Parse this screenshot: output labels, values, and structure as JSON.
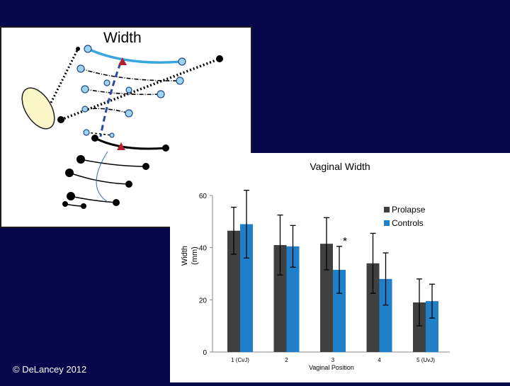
{
  "diagram": {
    "title": "Width"
  },
  "footer": {
    "copyright": "© DeLancey 2012"
  },
  "colors": {
    "background": "#05074a",
    "prolapse": "#404040",
    "controls": "#1f7fc8",
    "diagram_blue": "#3aa6e0",
    "diagram_dash": "#2a4aa0"
  },
  "chart_data": {
    "type": "bar",
    "title": "Vaginal Width",
    "xlabel": "Vaginal Position",
    "ylabel": "Width (mm)",
    "ylim": [
      0,
      60
    ],
    "yticks": [
      "0",
      "20",
      "40",
      "60"
    ],
    "categories": [
      "1 (CvJ)",
      "2",
      "3",
      "4",
      "5 (UvJ)"
    ],
    "series": [
      {
        "name": "Prolapse",
        "values": [
          46.5,
          41,
          41.5,
          34,
          19
        ],
        "errors": [
          9,
          11.5,
          10,
          11.5,
          9
        ]
      },
      {
        "name": "Controls",
        "values": [
          49,
          40.5,
          31.5,
          28,
          19.5
        ],
        "errors": [
          13,
          8,
          9,
          10,
          6.5
        ]
      }
    ],
    "annotations": [
      {
        "category": "3",
        "series": "Controls",
        "text": "*"
      }
    ],
    "legend": "top-right"
  }
}
